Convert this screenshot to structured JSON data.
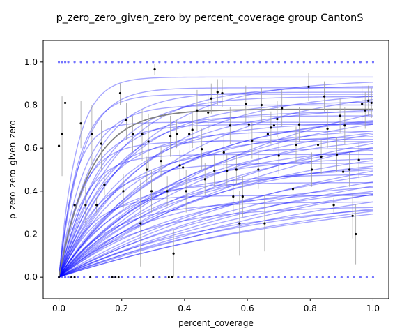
{
  "chart_data": {
    "type": "scatter",
    "title": "p_zero_zero_given_zero by percent_coverage group CantonS",
    "xlabel": "percent_coverage",
    "ylabel": "p_zero_zero_given_zero",
    "xlim": [
      -0.05,
      1.05
    ],
    "ylim": [
      -0.1,
      1.1
    ],
    "x_ticks": [
      0.0,
      0.2,
      0.4,
      0.6,
      0.8,
      1.0
    ],
    "y_ticks": [
      0.0,
      0.2,
      0.4,
      0.6,
      0.8,
      1.0
    ],
    "x_tick_labels": [
      "0.0",
      "0.2",
      "0.4",
      "0.6",
      "0.8",
      "1.0"
    ],
    "y_tick_labels": [
      "0.0",
      "0.2",
      "0.4",
      "0.6",
      "0.8",
      "1.0"
    ],
    "grid": false,
    "colors": {
      "fit_curves": "#0000ff",
      "mean_curve": "#808080",
      "points": "#000000",
      "raw_points": "#0000ff",
      "error_bars": "#a0a0a0"
    },
    "mean_curve": {
      "plateau": 0.78,
      "rate": 10
    },
    "fit_curves": [
      {
        "plateau": 0.93,
        "rate": 18
      },
      {
        "plateau": 0.88,
        "rate": 14
      },
      {
        "plateau": 0.86,
        "rate": 9
      },
      {
        "plateau": 0.84,
        "rate": 7
      },
      {
        "plateau": 0.82,
        "rate": 5
      },
      {
        "plateau": 0.8,
        "rate": 12
      },
      {
        "plateau": 0.79,
        "rate": 4
      },
      {
        "plateau": 0.77,
        "rate": 6
      },
      {
        "plateau": 0.76,
        "rate": 3
      },
      {
        "plateau": 0.75,
        "rate": 8
      },
      {
        "plateau": 0.73,
        "rate": 2.5
      },
      {
        "plateau": 0.72,
        "rate": 5
      },
      {
        "plateau": 0.71,
        "rate": 11
      },
      {
        "plateau": 0.7,
        "rate": 3.5
      },
      {
        "plateau": 0.69,
        "rate": 2
      },
      {
        "plateau": 0.68,
        "rate": 7
      },
      {
        "plateau": 0.66,
        "rate": 4.5
      },
      {
        "plateau": 0.65,
        "rate": 1.8
      },
      {
        "plateau": 0.64,
        "rate": 9
      },
      {
        "plateau": 0.62,
        "rate": 3
      },
      {
        "plateau": 0.61,
        "rate": 1.5
      },
      {
        "plateau": 0.6,
        "rate": 6
      },
      {
        "plateau": 0.58,
        "rate": 2.2
      },
      {
        "plateau": 0.57,
        "rate": 13
      },
      {
        "plateau": 0.56,
        "rate": 4
      },
      {
        "plateau": 0.55,
        "rate": 1.2
      },
      {
        "plateau": 0.54,
        "rate": 2.8
      },
      {
        "plateau": 0.53,
        "rate": 8
      },
      {
        "plateau": 0.52,
        "rate": 3.2
      },
      {
        "plateau": 0.5,
        "rate": 1.6
      },
      {
        "plateau": 0.48,
        "rate": 5
      },
      {
        "plateau": 0.46,
        "rate": 2.4
      },
      {
        "plateau": 0.44,
        "rate": 7
      },
      {
        "plateau": 0.42,
        "rate": 1.4
      },
      {
        "plateau": 0.4,
        "rate": 3.6
      },
      {
        "plateau": 0.38,
        "rate": 10
      },
      {
        "plateau": 0.36,
        "rate": 2
      },
      {
        "plateau": 0.35,
        "rate": 6
      },
      {
        "plateau": 0.33,
        "rate": 4
      },
      {
        "plateau": 0.9,
        "rate": 2.5
      },
      {
        "plateau": 0.95,
        "rate": 1.6
      },
      {
        "plateau": 0.87,
        "rate": 3.4
      },
      {
        "plateau": 0.83,
        "rate": 1.3
      },
      {
        "plateau": 0.92,
        "rate": 4.2
      },
      {
        "plateau": 0.74,
        "rate": 1.1
      },
      {
        "plateau": 0.67,
        "rate": 1.0
      },
      {
        "plateau": 0.63,
        "rate": 14
      },
      {
        "plateau": 0.81,
        "rate": 2.1
      },
      {
        "plateau": 0.59,
        "rate": 0.9
      },
      {
        "plateau": 0.78,
        "rate": 1.9
      },
      {
        "plateau": 0.85,
        "rate": 16
      },
      {
        "plateau": 0.7,
        "rate": 0.8
      },
      {
        "plateau": 0.5,
        "rate": 0.95
      },
      {
        "plateau": 0.89,
        "rate": 5.5
      },
      {
        "plateau": 0.77,
        "rate": 2.9
      },
      {
        "plateau": 0.62,
        "rate": 1.25
      },
      {
        "plateau": 0.44,
        "rate": 1.1
      },
      {
        "plateau": 0.72,
        "rate": 20
      },
      {
        "plateau": 0.8,
        "rate": 1.5
      },
      {
        "plateau": 0.68,
        "rate": 2.6
      }
    ],
    "points": [
      {
        "x": 0.0,
        "y": 0.61,
        "lo": 0.55,
        "hi": 0.67
      },
      {
        "x": 0.01,
        "y": 0.665,
        "lo": 0.47,
        "hi": 0.84
      },
      {
        "x": 0.02,
        "y": 0.81,
        "lo": 0.74,
        "hi": 0.87
      },
      {
        "x": 0.05,
        "y": 0.335,
        "lo": 0.33,
        "hi": 0.34
      },
      {
        "x": 0.07,
        "y": 0.715,
        "lo": 0.6,
        "hi": 0.82
      },
      {
        "x": 0.085,
        "y": 0.335,
        "lo": 0.25,
        "hi": 0.42
      },
      {
        "x": 0.105,
        "y": 0.665,
        "lo": 0.52,
        "hi": 0.8
      },
      {
        "x": 0.12,
        "y": 0.335,
        "lo": 0.3,
        "hi": 0.37
      },
      {
        "x": 0.135,
        "y": 0.62,
        "lo": 0.5,
        "hi": 0.73
      },
      {
        "x": 0.145,
        "y": 0.43,
        "lo": 0.38,
        "hi": 0.48
      },
      {
        "x": 0.195,
        "y": 0.855,
        "lo": 0.8,
        "hi": 0.9
      },
      {
        "x": 0.205,
        "y": 0.4,
        "lo": 0.32,
        "hi": 0.48
      },
      {
        "x": 0.215,
        "y": 0.73,
        "lo": 0.64,
        "hi": 0.81
      },
      {
        "x": 0.235,
        "y": 0.665,
        "lo": 0.58,
        "hi": 0.75
      },
      {
        "x": 0.26,
        "y": 0.25,
        "lo": 0.05,
        "hi": 0.45
      },
      {
        "x": 0.265,
        "y": 0.665,
        "lo": 0.54,
        "hi": 0.78
      },
      {
        "x": 0.28,
        "y": 0.5,
        "lo": 0.44,
        "hi": 0.56
      },
      {
        "x": 0.285,
        "y": 0.63,
        "lo": 0.5,
        "hi": 0.76
      },
      {
        "x": 0.295,
        "y": 0.4,
        "lo": 0.3,
        "hi": 0.5
      },
      {
        "x": 0.305,
        "y": 0.965,
        "lo": 0.94,
        "hi": 0.99
      },
      {
        "x": 0.325,
        "y": 0.54,
        "lo": 0.47,
        "hi": 0.61
      },
      {
        "x": 0.345,
        "y": 0.4,
        "lo": 0.33,
        "hi": 0.47
      },
      {
        "x": 0.355,
        "y": 0.655,
        "lo": 0.56,
        "hi": 0.75
      },
      {
        "x": 0.365,
        "y": 0.11,
        "lo": 0.0,
        "hi": 0.22
      },
      {
        "x": 0.375,
        "y": 0.665,
        "lo": 0.6,
        "hi": 0.73
      },
      {
        "x": 0.385,
        "y": 0.52,
        "lo": 0.45,
        "hi": 0.59
      },
      {
        "x": 0.395,
        "y": 0.51,
        "lo": 0.43,
        "hi": 0.59
      },
      {
        "x": 0.405,
        "y": 0.4,
        "lo": 0.3,
        "hi": 0.5
      },
      {
        "x": 0.415,
        "y": 0.665,
        "lo": 0.58,
        "hi": 0.75
      },
      {
        "x": 0.425,
        "y": 0.685,
        "lo": 0.6,
        "hi": 0.77
      },
      {
        "x": 0.44,
        "y": 0.775,
        "lo": 0.68,
        "hi": 0.87
      },
      {
        "x": 0.455,
        "y": 0.595,
        "lo": 0.5,
        "hi": 0.69
      },
      {
        "x": 0.465,
        "y": 0.455,
        "lo": 0.38,
        "hi": 0.53
      },
      {
        "x": 0.475,
        "y": 0.765,
        "lo": 0.68,
        "hi": 0.85
      },
      {
        "x": 0.485,
        "y": 0.83,
        "lo": 0.76,
        "hi": 0.9
      },
      {
        "x": 0.495,
        "y": 0.495,
        "lo": 0.42,
        "hi": 0.57
      },
      {
        "x": 0.505,
        "y": 0.86,
        "lo": 0.8,
        "hi": 0.92
      },
      {
        "x": 0.52,
        "y": 0.855,
        "lo": 0.79,
        "hi": 0.92
      },
      {
        "x": 0.525,
        "y": 0.58,
        "lo": 0.5,
        "hi": 0.66
      },
      {
        "x": 0.535,
        "y": 0.495,
        "lo": 0.42,
        "hi": 0.57
      },
      {
        "x": 0.545,
        "y": 0.705,
        "lo": 0.62,
        "hi": 0.79
      },
      {
        "x": 0.555,
        "y": 0.375,
        "lo": 0.3,
        "hi": 0.45
      },
      {
        "x": 0.565,
        "y": 0.5,
        "lo": 0.43,
        "hi": 0.57
      },
      {
        "x": 0.575,
        "y": 0.25,
        "lo": 0.1,
        "hi": 0.4
      },
      {
        "x": 0.585,
        "y": 0.375,
        "lo": 0.28,
        "hi": 0.47
      },
      {
        "x": 0.595,
        "y": 0.805,
        "lo": 0.72,
        "hi": 0.89
      },
      {
        "x": 0.605,
        "y": 0.71,
        "lo": 0.63,
        "hi": 0.79
      },
      {
        "x": 0.615,
        "y": 0.635,
        "lo": 0.55,
        "hi": 0.72
      },
      {
        "x": 0.635,
        "y": 0.5,
        "lo": 0.41,
        "hi": 0.59
      },
      {
        "x": 0.645,
        "y": 0.8,
        "lo": 0.72,
        "hi": 0.88
      },
      {
        "x": 0.655,
        "y": 0.25,
        "lo": 0.12,
        "hi": 0.38
      },
      {
        "x": 0.665,
        "y": 0.665,
        "lo": 0.58,
        "hi": 0.75
      },
      {
        "x": 0.675,
        "y": 0.695,
        "lo": 0.62,
        "hi": 0.77
      },
      {
        "x": 0.685,
        "y": 0.705,
        "lo": 0.62,
        "hi": 0.79
      },
      {
        "x": 0.695,
        "y": 0.735,
        "lo": 0.65,
        "hi": 0.82
      },
      {
        "x": 0.7,
        "y": 0.565,
        "lo": 0.48,
        "hi": 0.65
      },
      {
        "x": 0.71,
        "y": 0.785,
        "lo": 0.7,
        "hi": 0.87
      },
      {
        "x": 0.745,
        "y": 0.41,
        "lo": 0.34,
        "hi": 0.48
      },
      {
        "x": 0.755,
        "y": 0.615,
        "lo": 0.53,
        "hi": 0.7
      },
      {
        "x": 0.765,
        "y": 0.71,
        "lo": 0.63,
        "hi": 0.79
      },
      {
        "x": 0.795,
        "y": 0.885,
        "lo": 0.82,
        "hi": 0.95
      },
      {
        "x": 0.805,
        "y": 0.5,
        "lo": 0.42,
        "hi": 0.58
      },
      {
        "x": 0.825,
        "y": 0.615,
        "lo": 0.53,
        "hi": 0.7
      },
      {
        "x": 0.835,
        "y": 0.56,
        "lo": 0.48,
        "hi": 0.64
      },
      {
        "x": 0.845,
        "y": 0.84,
        "lo": 0.77,
        "hi": 0.91
      },
      {
        "x": 0.855,
        "y": 0.69,
        "lo": 0.6,
        "hi": 0.78
      },
      {
        "x": 0.875,
        "y": 0.335,
        "lo": 0.3,
        "hi": 0.37
      },
      {
        "x": 0.885,
        "y": 0.57,
        "lo": 0.49,
        "hi": 0.65
      },
      {
        "x": 0.895,
        "y": 0.75,
        "lo": 0.67,
        "hi": 0.83
      },
      {
        "x": 0.905,
        "y": 0.49,
        "lo": 0.41,
        "hi": 0.57
      },
      {
        "x": 0.91,
        "y": 0.705,
        "lo": 0.62,
        "hi": 0.79
      },
      {
        "x": 0.925,
        "y": 0.5,
        "lo": 0.42,
        "hi": 0.58
      },
      {
        "x": 0.935,
        "y": 0.285,
        "lo": 0.18,
        "hi": 0.39
      },
      {
        "x": 0.945,
        "y": 0.2,
        "lo": 0.06,
        "hi": 0.34
      },
      {
        "x": 0.955,
        "y": 0.545,
        "lo": 0.46,
        "hi": 0.63
      },
      {
        "x": 0.965,
        "y": 0.805,
        "lo": 0.72,
        "hi": 0.89
      },
      {
        "x": 0.975,
        "y": 0.775,
        "lo": 0.69,
        "hi": 0.86
      },
      {
        "x": 0.985,
        "y": 0.82,
        "lo": 0.75,
        "hi": 0.89
      },
      {
        "x": 0.995,
        "y": 0.81,
        "lo": 0.74,
        "hi": 0.88
      }
    ],
    "raw_points_top_x": [
      0.0,
      0.01,
      0.02,
      0.03,
      0.05,
      0.07,
      0.09,
      0.11,
      0.13,
      0.15,
      0.17,
      0.19,
      0.2,
      0.22,
      0.24,
      0.26,
      0.28,
      0.3,
      0.32,
      0.34,
      0.36,
      0.38,
      0.4,
      0.42,
      0.44,
      0.46,
      0.48,
      0.5,
      0.52,
      0.54,
      0.56,
      0.58,
      0.6,
      0.62,
      0.64,
      0.66,
      0.68,
      0.7,
      0.72,
      0.74,
      0.76,
      0.78,
      0.8,
      0.82,
      0.84,
      0.86,
      0.88,
      0.9,
      0.92,
      0.94,
      0.96,
      0.98,
      1.0
    ],
    "raw_points_bottom_x": [
      0.0,
      0.01,
      0.02,
      0.03,
      0.04,
      0.05,
      0.06,
      0.08,
      0.1,
      0.12,
      0.14,
      0.16,
      0.17,
      0.18,
      0.2,
      0.22,
      0.24,
      0.26,
      0.28,
      0.3,
      0.32,
      0.34,
      0.36,
      0.38,
      0.4,
      0.42,
      0.44,
      0.46,
      0.48,
      0.5,
      0.52,
      0.54,
      0.56,
      0.58,
      0.6,
      0.62,
      0.64,
      0.66,
      0.68,
      0.7,
      0.72,
      0.74,
      0.76,
      0.78,
      0.8,
      0.82,
      0.84,
      0.86,
      0.88,
      0.9,
      0.92,
      0.94,
      0.96,
      0.98,
      1.0
    ],
    "zero_markers_x": [
      0.0,
      0.04,
      0.05,
      0.1,
      0.17,
      0.18,
      0.19,
      0.3,
      0.35,
      0.36
    ]
  }
}
